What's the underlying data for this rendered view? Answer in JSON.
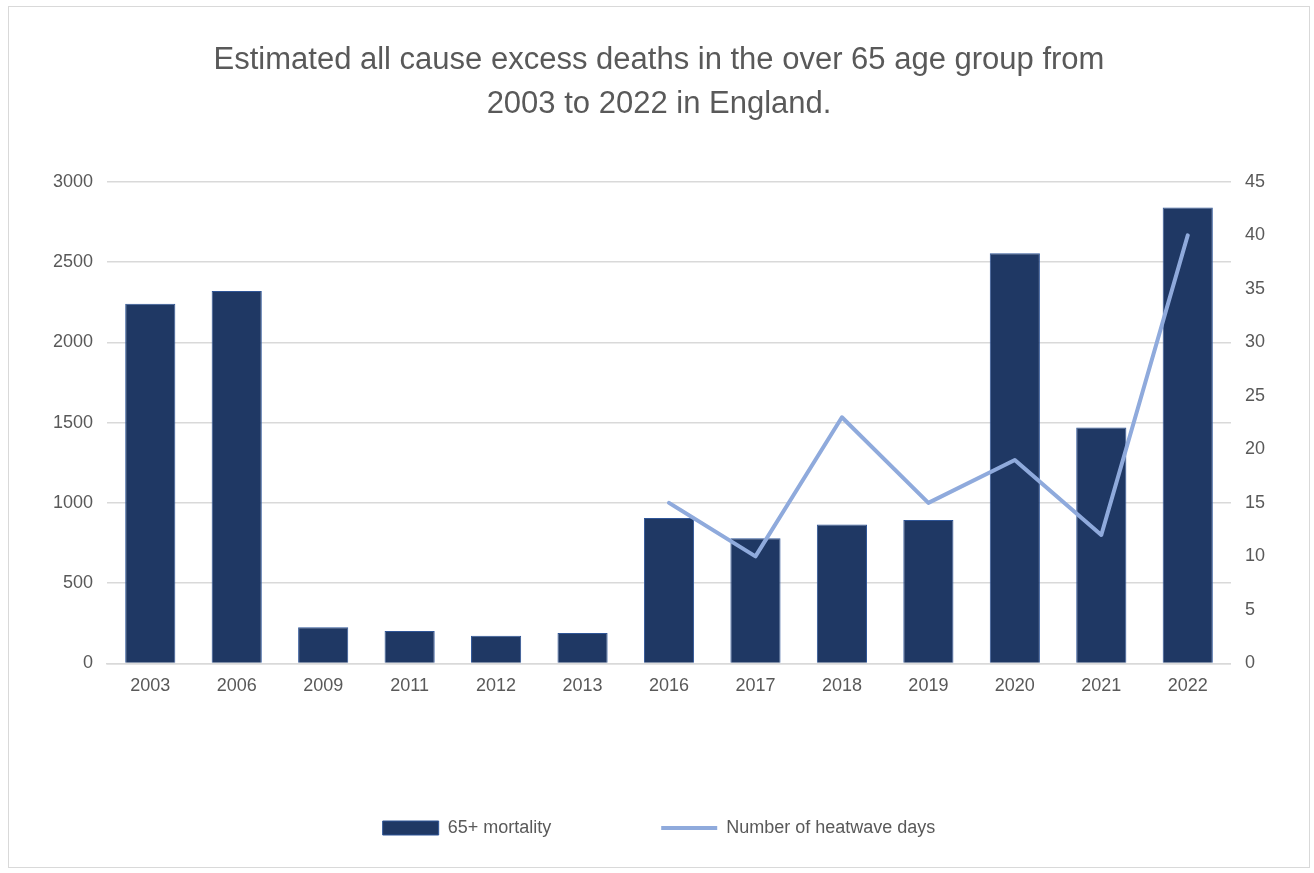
{
  "chart_data": {
    "type": "bar",
    "title": "Estimated all cause excess deaths in the over 65 age group from 2003 to 2022 in England.",
    "categories": [
      "2003",
      "2006",
      "2009",
      "2011",
      "2012",
      "2013",
      "2016",
      "2017",
      "2018",
      "2019",
      "2020",
      "2021",
      "2022"
    ],
    "series": [
      {
        "name": "65+ mortality",
        "color": "#1f3864",
        "values": [
          2240,
          2320,
          225,
          202,
          173,
          190,
          905,
          780,
          865,
          893,
          2555,
          1470,
          2840
        ]
      },
      {
        "name": "Number of heatwave days",
        "type": "line",
        "axis": "y2",
        "color": "#8faadc",
        "values": [
          null,
          null,
          null,
          null,
          null,
          null,
          15,
          10,
          23,
          15,
          19,
          12,
          40
        ]
      }
    ],
    "ylim": [
      0,
      3000
    ],
    "yticks": [
      0,
      500,
      1000,
      1500,
      2000,
      2500,
      3000
    ],
    "y2lim": [
      0,
      45
    ],
    "y2ticks": [
      0,
      5,
      10,
      15,
      20,
      25,
      30,
      35,
      40,
      45
    ],
    "grid": "y",
    "legend": "bottom",
    "marker": "none",
    "line_style": "solid"
  }
}
